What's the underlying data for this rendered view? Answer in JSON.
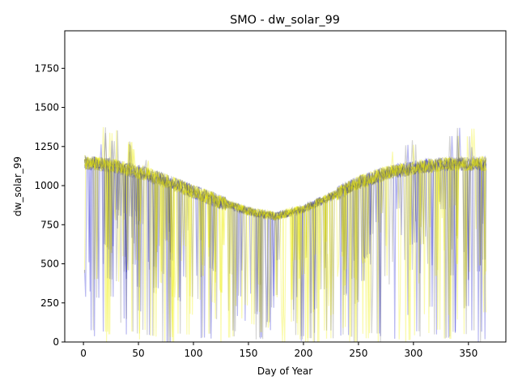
{
  "chart_data": {
    "type": "line",
    "title": "SMO - dw_solar_99",
    "xlabel": "Day of Year",
    "ylabel": "dw_solar_99",
    "xlim": [
      -17,
      384
    ],
    "ylim": [
      0,
      1990
    ],
    "x_ticks": [
      "0",
      "50",
      "100",
      "150",
      "200",
      "250",
      "300",
      "350"
    ],
    "x_tick_values": [
      0,
      50,
      100,
      150,
      200,
      250,
      300,
      350
    ],
    "y_ticks": [
      "0",
      "250",
      "500",
      "750",
      "1000",
      "1250",
      "1500",
      "1750"
    ],
    "y_tick_values": [
      0,
      250,
      500,
      750,
      1000,
      1250,
      1500,
      1750
    ],
    "grid": false,
    "legend": "none",
    "x_range": [
      1,
      366
    ],
    "series_colors": [
      "#0000cc",
      "#eeee00",
      "#555555"
    ],
    "typical_curve": [
      [
        1,
        1150
      ],
      [
        25,
        1130
      ],
      [
        50,
        1090
      ],
      [
        75,
        1030
      ],
      [
        100,
        960
      ],
      [
        125,
        895
      ],
      [
        150,
        835
      ],
      [
        175,
        805
      ],
      [
        200,
        850
      ],
      [
        225,
        930
      ],
      [
        250,
        1020
      ],
      [
        275,
        1080
      ],
      [
        300,
        1115
      ],
      [
        325,
        1135
      ],
      [
        350,
        1140
      ],
      [
        366,
        1140
      ]
    ]
  }
}
